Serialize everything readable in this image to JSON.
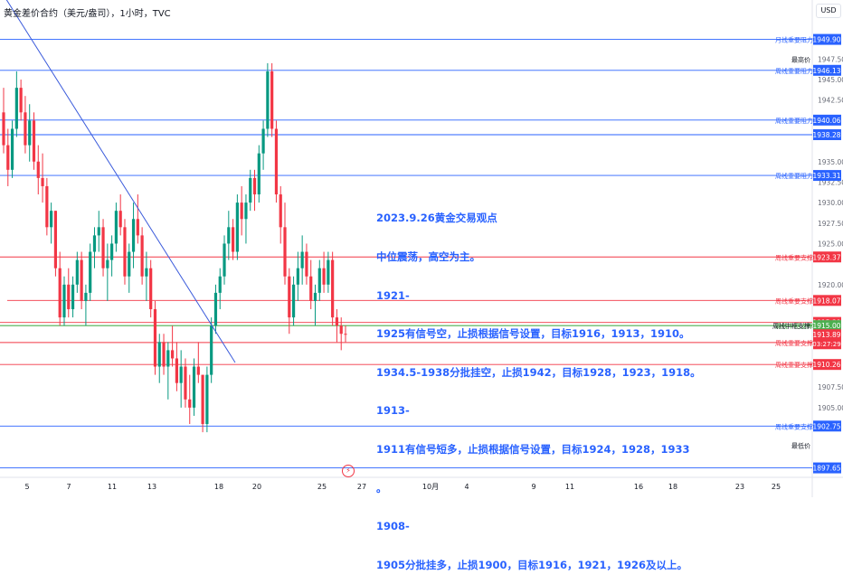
{
  "header": {
    "title": "黄金差价合约（美元/盎司），1小时，TVC",
    "currency": "USD"
  },
  "annotation": {
    "lines": [
      "2023.9.26黄金交易观点",
      "中位震荡，高空为主。",
      "1921-",
      "1925有信号空，止损根据信号设置，目标1916，1913，1910。",
      "1934.5-1938分批挂空，止损1942，目标1928，1923，1918。",
      "1913-",
      "1911有信号短多，止损根据信号设置，目标1924，1928，1933",
      "。",
      "1908-",
      "1905分批挂多，止损1900，目标1916，1921，1926及以上。"
    ]
  },
  "colors": {
    "up": "#089981",
    "down": "#f23645",
    "resistance": "#2962ff",
    "support": "#f23645",
    "green_level": "#4caf50",
    "trendline": "#3b5bdb"
  },
  "chart_data": {
    "type": "candlestick",
    "title": "黄金差价合约（美元/盎司），1小时，TVC",
    "ylim": [
      1896.5,
      1952.5
    ],
    "y_ticks": [
      "1947.50",
      "1945.00",
      "1942.50",
      "1935.00",
      "1932.50",
      "1930.00",
      "1927.50",
      "1925.00",
      "1920.00",
      "1907.50",
      "1905.00"
    ],
    "x_ticks": [
      "5",
      "7",
      "11",
      "13",
      "18",
      "20",
      "25",
      "27",
      "10月",
      "4",
      "9",
      "11",
      "16",
      "18",
      "23",
      "25"
    ],
    "levels": [
      {
        "price": 1949.9,
        "label": "月线重要阻力",
        "kind": "resistance"
      },
      {
        "price": 1946.13,
        "label": "周线重要阻力",
        "kind": "resistance"
      },
      {
        "price": 1940.06,
        "label": "周线重要阻力",
        "kind": "resistance"
      },
      {
        "price": 1938.28,
        "label": "",
        "kind": "resistance"
      },
      {
        "price": 1933.31,
        "label": "周线重要阻力",
        "kind": "resistance"
      },
      {
        "price": 1923.37,
        "label": "周线重要支撑",
        "kind": "support"
      },
      {
        "price": 1918.07,
        "label": "周线重要支撑",
        "kind": "support"
      },
      {
        "price": 1915.39,
        "label": "",
        "kind": "support"
      },
      {
        "price": 1915.0,
        "label": "周线中枢支撑1915",
        "kind": "pivot"
      },
      {
        "price": 1912.94,
        "label": "周线重要支撑",
        "kind": "support"
      },
      {
        "price": 1910.26,
        "label": "周线重要支撑",
        "kind": "support"
      },
      {
        "price": 1902.75,
        "label": "周线重要支撑1903",
        "kind": "resistance"
      },
      {
        "price": 1897.65,
        "label": "",
        "kind": "resistance"
      }
    ],
    "extra_labels": [
      {
        "price": 1947.5,
        "label": "最高价"
      },
      {
        "price": 1900.4,
        "label": "最低价"
      },
      {
        "price": 1915.0,
        "label": "周线中枢支撑"
      }
    ],
    "current_price": 1913.89,
    "countdown": "03:27:29",
    "trendline": [
      {
        "date": "9月4",
        "price": 1956.0
      },
      {
        "date": "9月19",
        "price": 1910.5
      }
    ],
    "candles": [
      [
        1941,
        1944,
        1936,
        1937
      ],
      [
        1937,
        1939,
        1932,
        1934
      ],
      [
        1934,
        1940,
        1933,
        1939
      ],
      [
        1939,
        1946,
        1938,
        1944
      ],
      [
        1944,
        1945,
        1940,
        1941
      ],
      [
        1941,
        1943,
        1936,
        1937
      ],
      [
        1937,
        1942,
        1935,
        1940
      ],
      [
        1940,
        1941,
        1934,
        1935
      ],
      [
        1935,
        1937,
        1931,
        1933
      ],
      [
        1933,
        1936,
        1930,
        1932
      ],
      [
        1932,
        1933,
        1926,
        1927
      ],
      [
        1927,
        1930,
        1925,
        1929
      ],
      [
        1929,
        1929,
        1921,
        1922
      ],
      [
        1922,
        1924,
        1915,
        1916
      ],
      [
        1916,
        1921,
        1915,
        1920
      ],
      [
        1920,
        1922,
        1916,
        1917
      ],
      [
        1917,
        1921,
        1916,
        1920
      ],
      [
        1920,
        1924,
        1919,
        1923
      ],
      [
        1923,
        1924,
        1917,
        1918
      ],
      [
        1918,
        1920,
        1915,
        1919
      ],
      [
        1919,
        1925,
        1918,
        1924
      ],
      [
        1924,
        1927,
        1922,
        1926
      ],
      [
        1926,
        1929,
        1924,
        1927
      ],
      [
        1927,
        1928,
        1921,
        1922
      ],
      [
        1922,
        1925,
        1918,
        1923
      ],
      [
        1923,
        1926,
        1921,
        1925
      ],
      [
        1925,
        1930,
        1924,
        1929
      ],
      [
        1929,
        1931,
        1926,
        1927
      ],
      [
        1927,
        1928,
        1920,
        1921
      ],
      [
        1921,
        1925,
        1919,
        1924
      ],
      [
        1924,
        1930,
        1922,
        1928
      ],
      [
        1928,
        1931,
        1925,
        1926
      ],
      [
        1926,
        1927,
        1920,
        1921
      ],
      [
        1921,
        1924,
        1918,
        1922
      ],
      [
        1922,
        1923,
        1916,
        1917
      ],
      [
        1917,
        1918,
        1909,
        1910
      ],
      [
        1910,
        1914,
        1908,
        1913
      ],
      [
        1913,
        1914,
        1909,
        1910
      ],
      [
        1910,
        1913,
        1906,
        1912
      ],
      [
        1912,
        1915,
        1910,
        1911
      ],
      [
        1911,
        1913,
        1907,
        1908
      ],
      [
        1908,
        1912,
        1905,
        1910
      ],
      [
        1910,
        1911,
        1905,
        1906
      ],
      [
        1906,
        1909,
        1903,
        1905
      ],
      [
        1905,
        1911,
        1904,
        1910
      ],
      [
        1910,
        1913,
        1908,
        1909
      ],
      [
        1909,
        1909,
        1902,
        1903
      ],
      [
        1903,
        1910,
        1902,
        1909
      ],
      [
        1909,
        1916,
        1908,
        1915
      ],
      [
        1915,
        1920,
        1914,
        1919
      ],
      [
        1919,
        1922,
        1917,
        1921
      ],
      [
        1921,
        1926,
        1920,
        1925
      ],
      [
        1925,
        1929,
        1923,
        1927
      ],
      [
        1927,
        1928,
        1923,
        1924
      ],
      [
        1924,
        1931,
        1923,
        1930
      ],
      [
        1930,
        1932,
        1926,
        1928
      ],
      [
        1928,
        1931,
        1925,
        1930
      ],
      [
        1930,
        1934,
        1929,
        1933
      ],
      [
        1933,
        1934,
        1929,
        1931
      ],
      [
        1931,
        1937,
        1930,
        1936
      ],
      [
        1936,
        1940,
        1934,
        1939
      ],
      [
        1939,
        1947,
        1938,
        1946
      ],
      [
        1946,
        1947,
        1938,
        1939
      ],
      [
        1939,
        1940,
        1930,
        1931
      ],
      [
        1931,
        1932,
        1925,
        1927
      ],
      [
        1927,
        1930,
        1920,
        1921
      ],
      [
        1921,
        1922,
        1914,
        1916
      ],
      [
        1916,
        1921,
        1915,
        1920
      ],
      [
        1920,
        1924,
        1918,
        1922
      ],
      [
        1922,
        1926,
        1920,
        1924
      ],
      [
        1924,
        1925,
        1920,
        1921
      ],
      [
        1921,
        1923,
        1917,
        1918
      ],
      [
        1918,
        1920,
        1915,
        1919
      ],
      [
        1919,
        1923,
        1918,
        1922
      ],
      [
        1922,
        1924,
        1919,
        1920
      ],
      [
        1920,
        1924,
        1919,
        1923
      ],
      [
        1923,
        1924,
        1915,
        1916
      ],
      [
        1916,
        1917,
        1913,
        1915
      ],
      [
        1915,
        1916,
        1912,
        1914
      ],
      [
        1914,
        1915,
        1913,
        1913.89
      ]
    ]
  }
}
